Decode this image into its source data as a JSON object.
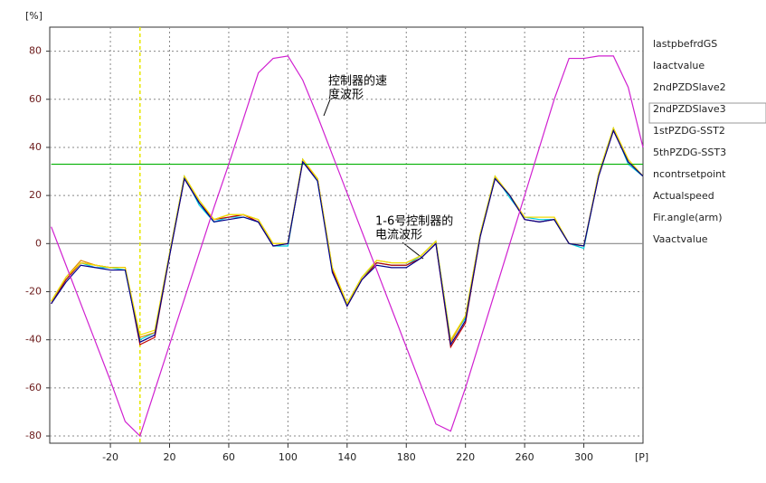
{
  "chart_data": {
    "type": "line",
    "y_unit": "[%]",
    "x_unit": "[P]",
    "xlim": [
      -61,
      340
    ],
    "ylim": [
      -83,
      90
    ],
    "xticks": [
      -20,
      20,
      60,
      100,
      140,
      180,
      220,
      260,
      300
    ],
    "yticks": [
      -80,
      -60,
      -40,
      -20,
      0,
      20,
      40,
      60,
      80
    ],
    "grid": true,
    "cursor": 0,
    "cursor_color": "#e8e800",
    "x": [
      -60,
      -50,
      -40,
      -30,
      -20,
      -10,
      0,
      10,
      20,
      30,
      40,
      50,
      60,
      70,
      80,
      90,
      100,
      110,
      120,
      130,
      140,
      150,
      160,
      170,
      180,
      190,
      200,
      210,
      220,
      230,
      240,
      250,
      260,
      270,
      280,
      290,
      300,
      310,
      320,
      330,
      340
    ],
    "series": [
      {
        "name": "lastpbefrdGS",
        "color": "#00d0e0",
        "values": [
          -24,
          -15,
          -8,
          -10,
          -10,
          -11,
          -40,
          -37,
          -4,
          28,
          16,
          9,
          11,
          11,
          9,
          -1,
          -1,
          35,
          26,
          -11,
          -25,
          -14,
          -8,
          -9,
          -9,
          -5,
          1,
          -40,
          -31,
          4,
          28,
          19,
          11,
          10,
          10,
          0,
          -2,
          29,
          48,
          33,
          28
        ]
      },
      {
        "name": "Iaactvalue",
        "color": "#c00000",
        "values": [
          -25,
          -15,
          -8,
          -9,
          -10,
          -10,
          -42,
          -39,
          -5,
          27,
          17,
          10,
          11,
          12,
          9,
          -1,
          0,
          34,
          27,
          -11,
          -26,
          -15,
          -8,
          -9,
          -9,
          -6,
          0,
          -43,
          -33,
          3,
          27,
          20,
          10,
          9,
          10,
          0,
          -1,
          28,
          47,
          34,
          28
        ]
      },
      {
        "name": "2ndPZDSlave2",
        "color": "#e08a00",
        "values": [
          -24,
          -14,
          -7,
          -9,
          -10,
          -10,
          -39,
          -37,
          -4,
          28,
          18,
          10,
          12,
          12,
          10,
          0,
          0,
          35,
          27,
          -10,
          -25,
          -14,
          -7,
          -8,
          -8,
          -5,
          1,
          -41,
          -30,
          4,
          28,
          20,
          11,
          11,
          11,
          0,
          -1,
          29,
          48,
          35,
          28
        ]
      },
      {
        "name": "2ndPZDSlave3",
        "color": "#f0e000",
        "values": [
          -24,
          -14,
          -8,
          -9,
          -10,
          -10,
          -38,
          -36,
          -4,
          28,
          18,
          10,
          12,
          12,
          10,
          0,
          0,
          35,
          27,
          -10,
          -25,
          -14,
          -7,
          -8,
          -8,
          -5,
          1,
          -40,
          -30,
          4,
          28,
          20,
          11,
          11,
          11,
          0,
          -1,
          29,
          48,
          35,
          28
        ]
      },
      {
        "name": "1stPZDG-SST2",
        "color": "#00b000",
        "values": [
          33,
          33,
          33,
          33,
          33,
          33,
          33,
          33,
          33,
          33,
          33,
          33,
          33,
          33,
          33,
          33,
          33,
          33,
          33,
          33,
          33,
          33,
          33,
          33,
          33,
          33,
          33,
          33,
          33,
          33,
          33,
          33,
          33,
          33,
          33,
          33,
          33,
          33,
          33,
          33,
          33
        ]
      },
      {
        "name": "5thPZDG-SST3",
        "color": "#00008b",
        "values": [
          -25,
          -16,
          -9,
          -10,
          -11,
          -11,
          -41,
          -38,
          -5,
          27,
          17,
          9,
          10,
          11,
          9,
          -1,
          0,
          34,
          26,
          -12,
          -26,
          -15,
          -9,
          -10,
          -10,
          -6,
          0,
          -42,
          -32,
          3,
          27,
          20,
          10,
          9,
          10,
          0,
          -1,
          28,
          47,
          34,
          28
        ]
      },
      {
        "name": "ncontrsetpoint",
        "color": "#d020d0",
        "values": [
          7,
          -9,
          -25,
          -41,
          -57,
          -74,
          -80,
          -61,
          -42,
          -23,
          -4,
          15,
          33,
          52,
          71,
          77,
          78,
          68,
          53,
          37,
          21,
          5,
          -11,
          -27,
          -43,
          -59,
          -75,
          -78,
          -60,
          -40,
          -20,
          0,
          20,
          40,
          60,
          77,
          77,
          78,
          78,
          65,
          40
        ]
      },
      {
        "name": "Actualspeed",
        "color": "#808080",
        "values": [
          null,
          null,
          null,
          null,
          null,
          null,
          null,
          null,
          null,
          null,
          null,
          null,
          null,
          null,
          null,
          null,
          null,
          null,
          null,
          null,
          null,
          null,
          null,
          null,
          null,
          null,
          null,
          null,
          null,
          null,
          null,
          null,
          null,
          null,
          null,
          null,
          null,
          null,
          null,
          null,
          null
        ]
      },
      {
        "name": "Fir.angle(arm)",
        "color": "#b0b0b0",
        "values": [
          null,
          null,
          null,
          null,
          null,
          null,
          null,
          null,
          null,
          null,
          null,
          null,
          null,
          null,
          null,
          null,
          null,
          null,
          null,
          null,
          null,
          null,
          null,
          null,
          null,
          null,
          null,
          null,
          null,
          null,
          null,
          null,
          null,
          null,
          null,
          null,
          null,
          null,
          null,
          null,
          null
        ]
      },
      {
        "name": "Vaactvalue",
        "color": "#008080",
        "values": [
          null,
          null,
          null,
          null,
          null,
          null,
          null,
          null,
          null,
          null,
          null,
          null,
          null,
          null,
          null,
          null,
          null,
          null,
          null,
          null,
          null,
          null,
          null,
          null,
          null,
          null,
          null,
          null,
          null,
          null,
          null,
          null,
          null,
          null,
          null,
          null,
          null,
          null,
          null,
          null,
          null
        ]
      }
    ],
    "annotations": [
      {
        "lines": [
          "控制器的速",
          "度波形"
        ]
      },
      {
        "lines": [
          "1-6号控制器的",
          "电流波形"
        ]
      }
    ]
  }
}
